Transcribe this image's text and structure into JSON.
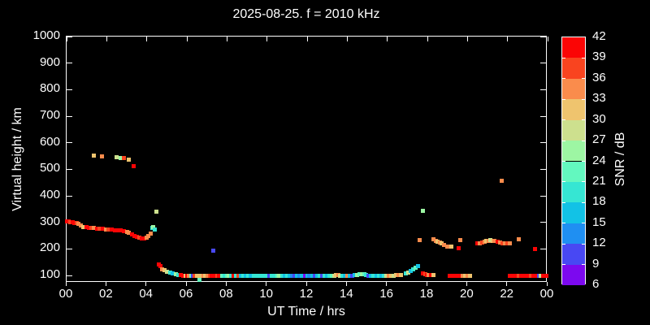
{
  "window": {
    "background": "#000000",
    "text_color": "#ffffff"
  },
  "chart_data": {
    "type": "scatter",
    "title": "2025-08-25. f = 2010 kHz",
    "xlabel": "UT Time / hrs",
    "ylabel": "Virtual height / km",
    "grid": false,
    "legend_position": "right-colorbar",
    "x_range_hours": [
      0,
      24
    ],
    "x_tick_labels": [
      "00",
      "02",
      "04",
      "06",
      "08",
      "10",
      "12",
      "14",
      "16",
      "18",
      "20",
      "22",
      "00"
    ],
    "y_tick_values": [
      100,
      200,
      300,
      400,
      500,
      600,
      700,
      800,
      900,
      1000
    ],
    "ylim": [
      65,
      1000
    ],
    "colorbar": {
      "label": "SNR / dB",
      "tick_labels": [
        "42",
        "39",
        "36",
        "33",
        "30",
        "27",
        "24",
        "21",
        "18",
        "15",
        "12",
        "9",
        "6"
      ],
      "segments": [
        {
          "snr_min": 39,
          "snr_max": 42,
          "color": "#fb0505"
        },
        {
          "snr_min": 36,
          "snr_max": 39,
          "color": "#f9441f"
        },
        {
          "snr_min": 33,
          "snr_max": 36,
          "color": "#fa8c4c"
        },
        {
          "snr_min": 30,
          "snr_max": 33,
          "color": "#efc46e"
        },
        {
          "snr_min": 27,
          "snr_max": 30,
          "color": "#cde08e"
        },
        {
          "snr_min": 24,
          "snr_max": 27,
          "color": "#9df6a3"
        },
        {
          "snr_min": 21,
          "snr_max": 24,
          "color": "#63f8bf"
        },
        {
          "snr_min": 18,
          "snr_max": 21,
          "color": "#36e6d3"
        },
        {
          "snr_min": 15,
          "snr_max": 18,
          "color": "#12c2e6"
        },
        {
          "snr_min": 12,
          "snr_max": 15,
          "color": "#1f8ff2"
        },
        {
          "snr_min": 9,
          "snr_max": 12,
          "color": "#4848f3"
        },
        {
          "snr_min": 6,
          "snr_max": 9,
          "color": "#7c09ef"
        }
      ]
    },
    "points_format": "[ut_hours, virtual_height_km, snr_db]",
    "points": [
      [
        0.0,
        305,
        40
      ],
      [
        0.1,
        304,
        40
      ],
      [
        0.2,
        302,
        37
      ],
      [
        0.3,
        300,
        40
      ],
      [
        0.4,
        298,
        40
      ],
      [
        0.5,
        297,
        37
      ],
      [
        0.6,
        294,
        34
      ],
      [
        0.72,
        288,
        34
      ],
      [
        0.85,
        283,
        31
      ],
      [
        0.98,
        281,
        40
      ],
      [
        1.1,
        280,
        40
      ],
      [
        1.22,
        279,
        37
      ],
      [
        1.35,
        278,
        34
      ],
      [
        1.5,
        277,
        40
      ],
      [
        1.65,
        276,
        37
      ],
      [
        1.8,
        275,
        40
      ],
      [
        1.95,
        274,
        34
      ],
      [
        2.1,
        273,
        37
      ],
      [
        2.25,
        272,
        40
      ],
      [
        2.4,
        271,
        40
      ],
      [
        2.55,
        271,
        40
      ],
      [
        2.7,
        270,
        40
      ],
      [
        2.85,
        268,
        40
      ],
      [
        3.0,
        265,
        34
      ],
      [
        3.12,
        261,
        34
      ],
      [
        3.25,
        256,
        40
      ],
      [
        3.38,
        250,
        40
      ],
      [
        3.5,
        245,
        40
      ],
      [
        3.62,
        241,
        37
      ],
      [
        3.75,
        238,
        40
      ],
      [
        3.88,
        238,
        40
      ],
      [
        3.98,
        241,
        34
      ],
      [
        4.08,
        248,
        34
      ],
      [
        4.18,
        257,
        34
      ],
      [
        4.26,
        278,
        19
      ],
      [
        4.33,
        281,
        25
      ],
      [
        4.4,
        272,
        19
      ],
      [
        4.47,
        341,
        28
      ],
      [
        1.34,
        551,
        31
      ],
      [
        1.75,
        548,
        34
      ],
      [
        2.5,
        545,
        28
      ],
      [
        2.71,
        543,
        25
      ],
      [
        2.87,
        541,
        37
      ],
      [
        3.09,
        535,
        31
      ],
      [
        3.34,
        512,
        40
      ],
      [
        4.6,
        141,
        40
      ],
      [
        4.68,
        134,
        40
      ],
      [
        4.78,
        124,
        34
      ],
      [
        4.9,
        119,
        31
      ],
      [
        5.02,
        114,
        28
      ],
      [
        5.15,
        111,
        19
      ],
      [
        5.3,
        108,
        16
      ],
      [
        5.45,
        105,
        25
      ],
      [
        5.58,
        103,
        19
      ],
      [
        5.7,
        101,
        40
      ],
      [
        5.82,
        100,
        40
      ],
      [
        5.92,
        99,
        31
      ],
      [
        6.02,
        99,
        40
      ],
      [
        6.12,
        100,
        34
      ],
      [
        6.22,
        99,
        22
      ],
      [
        6.3,
        99,
        10
      ],
      [
        6.4,
        100,
        37
      ],
      [
        6.5,
        99,
        31
      ],
      [
        6.63,
        82,
        22
      ],
      [
        6.7,
        99,
        31
      ],
      [
        6.82,
        100,
        34
      ],
      [
        6.92,
        99,
        31
      ],
      [
        7.04,
        99,
        34
      ],
      [
        7.15,
        99,
        37
      ],
      [
        7.25,
        99,
        40
      ],
      [
        7.38,
        99,
        40
      ],
      [
        7.5,
        99,
        37
      ],
      [
        7.62,
        99,
        40
      ],
      [
        7.75,
        99,
        22
      ],
      [
        7.88,
        99,
        19
      ],
      [
        8.0,
        99,
        22
      ],
      [
        8.1,
        99,
        25
      ],
      [
        8.22,
        99,
        19
      ],
      [
        8.34,
        99,
        40
      ],
      [
        8.45,
        99,
        19
      ],
      [
        8.58,
        99,
        37
      ],
      [
        8.7,
        99,
        16
      ],
      [
        8.82,
        99,
        19
      ],
      [
        8.95,
        99,
        16
      ],
      [
        9.08,
        99,
        19
      ],
      [
        9.2,
        99,
        16
      ],
      [
        9.35,
        99,
        19
      ],
      [
        9.5,
        99,
        19
      ],
      [
        9.65,
        99,
        19
      ],
      [
        9.8,
        99,
        19
      ],
      [
        9.95,
        99,
        19
      ],
      [
        10.1,
        99,
        10
      ],
      [
        10.22,
        99,
        19
      ],
      [
        10.35,
        99,
        19
      ],
      [
        10.5,
        99,
        22
      ],
      [
        10.62,
        99,
        25
      ],
      [
        10.75,
        99,
        19
      ],
      [
        10.88,
        99,
        16
      ],
      [
        11.0,
        99,
        19
      ],
      [
        11.12,
        99,
        16
      ],
      [
        11.25,
        99,
        13
      ],
      [
        11.38,
        99,
        10
      ],
      [
        11.5,
        99,
        16
      ],
      [
        11.62,
        99,
        13
      ],
      [
        11.75,
        99,
        16
      ],
      [
        11.88,
        99,
        7
      ],
      [
        12.0,
        99,
        16
      ],
      [
        12.12,
        98,
        13
      ],
      [
        12.25,
        98,
        16
      ],
      [
        12.38,
        98,
        10
      ],
      [
        12.5,
        98,
        16
      ],
      [
        12.62,
        98,
        19
      ],
      [
        12.76,
        98,
        10
      ],
      [
        12.88,
        98,
        19
      ],
      [
        13.0,
        98,
        16
      ],
      [
        13.12,
        98,
        19
      ],
      [
        13.25,
        99,
        22
      ],
      [
        13.35,
        100,
        28
      ],
      [
        13.45,
        101,
        31
      ],
      [
        13.55,
        101,
        34
      ],
      [
        13.65,
        100,
        28
      ],
      [
        13.78,
        99,
        19
      ],
      [
        13.9,
        99,
        16
      ],
      [
        14.02,
        100,
        34
      ],
      [
        14.12,
        99,
        16
      ],
      [
        14.25,
        99,
        10
      ],
      [
        14.38,
        101,
        16
      ],
      [
        14.5,
        103,
        25
      ],
      [
        14.62,
        105,
        22
      ],
      [
        14.72,
        106,
        25
      ],
      [
        14.85,
        104,
        22
      ],
      [
        14.95,
        102,
        19
      ],
      [
        15.08,
        100,
        10
      ],
      [
        15.2,
        99,
        16
      ],
      [
        15.32,
        99,
        19
      ],
      [
        15.45,
        99,
        16
      ],
      [
        15.58,
        99,
        19
      ],
      [
        15.7,
        99,
        16
      ],
      [
        15.82,
        99,
        19
      ],
      [
        15.95,
        99,
        28
      ],
      [
        16.08,
        99,
        34
      ],
      [
        16.2,
        100,
        31
      ],
      [
        16.32,
        100,
        28
      ],
      [
        16.45,
        101,
        31
      ],
      [
        16.58,
        101,
        34
      ],
      [
        16.7,
        102,
        31
      ],
      [
        7.3,
        194,
        10
      ],
      [
        16.92,
        107,
        19
      ],
      [
        17.05,
        112,
        28
      ],
      [
        17.18,
        118,
        16
      ],
      [
        17.3,
        124,
        19
      ],
      [
        17.42,
        130,
        22
      ],
      [
        17.52,
        136,
        16
      ],
      [
        17.77,
        108,
        40
      ],
      [
        17.88,
        105,
        37
      ],
      [
        17.98,
        103,
        40
      ],
      [
        18.08,
        102,
        34
      ],
      [
        18.18,
        101,
        40
      ],
      [
        18.3,
        101,
        31
      ],
      [
        19.1,
        98,
        40
      ],
      [
        19.2,
        98,
        40
      ],
      [
        19.3,
        99,
        40
      ],
      [
        19.42,
        98,
        40
      ],
      [
        19.55,
        98,
        40
      ],
      [
        19.75,
        98,
        34
      ],
      [
        19.88,
        99,
        31
      ],
      [
        20.0,
        98,
        34
      ],
      [
        20.12,
        98,
        31
      ],
      [
        22.1,
        98,
        40
      ],
      [
        22.22,
        98,
        40
      ],
      [
        22.34,
        98,
        40
      ],
      [
        22.46,
        98,
        40
      ],
      [
        22.58,
        98,
        37
      ],
      [
        22.7,
        98,
        40
      ],
      [
        22.82,
        98,
        40
      ],
      [
        22.94,
        98,
        40
      ],
      [
        23.06,
        98,
        40
      ],
      [
        23.18,
        98,
        37
      ],
      [
        23.3,
        98,
        40
      ],
      [
        23.42,
        98,
        40
      ],
      [
        23.52,
        98,
        40
      ],
      [
        23.58,
        98,
        10
      ],
      [
        23.66,
        98,
        28
      ],
      [
        23.76,
        98,
        40
      ],
      [
        23.86,
        98,
        40
      ],
      [
        23.94,
        98,
        40
      ],
      [
        17.6,
        234,
        34
      ],
      [
        18.31,
        235,
        34
      ],
      [
        18.42,
        231,
        34
      ],
      [
        18.52,
        227,
        31
      ],
      [
        18.62,
        223,
        34
      ],
      [
        18.72,
        220,
        31
      ],
      [
        18.85,
        215,
        34
      ],
      [
        19.0,
        210,
        34
      ],
      [
        19.19,
        208,
        31
      ],
      [
        19.57,
        204,
        40
      ],
      [
        19.64,
        232,
        34
      ],
      [
        20.5,
        220,
        40
      ],
      [
        20.62,
        222,
        34
      ],
      [
        20.72,
        225,
        37
      ],
      [
        20.85,
        228,
        34
      ],
      [
        20.95,
        230,
        31
      ],
      [
        21.05,
        231,
        34
      ],
      [
        21.15,
        232,
        28
      ],
      [
        21.25,
        231,
        31
      ],
      [
        21.35,
        229,
        34
      ],
      [
        21.5,
        226,
        40
      ],
      [
        21.62,
        224,
        34
      ],
      [
        21.75,
        222,
        37
      ],
      [
        21.88,
        220,
        34
      ],
      [
        22.0,
        222,
        37
      ],
      [
        22.1,
        220,
        34
      ],
      [
        22.55,
        237,
        34
      ],
      [
        23.36,
        198,
        40
      ],
      [
        17.76,
        342,
        25
      ],
      [
        21.7,
        458,
        34
      ]
    ]
  }
}
